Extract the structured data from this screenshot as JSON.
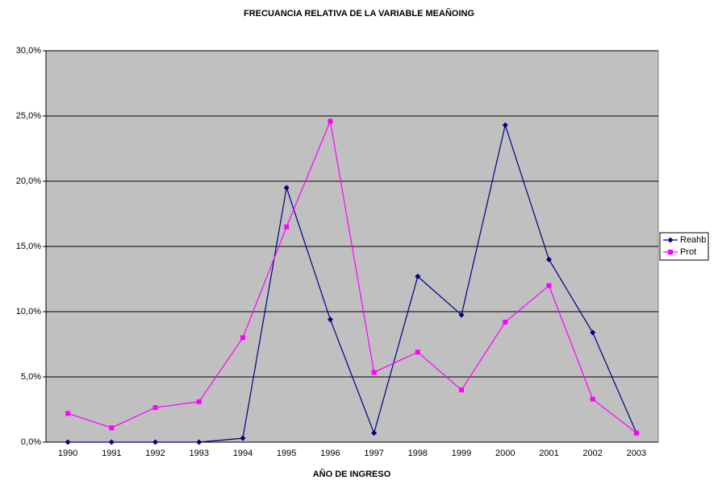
{
  "chart_data": {
    "type": "line",
    "title": "FRECUANCIA RELATIVA DE LA VARIABLE MEAÑOING",
    "x_label": "AÑO DE INGRESO",
    "categories": [
      "1990",
      "1991",
      "1992",
      "1993",
      "1994",
      "1995",
      "1996",
      "1997",
      "1998",
      "1999",
      "2000",
      "2001",
      "2002",
      "2003"
    ],
    "series": [
      {
        "name": "Reahb",
        "color": "#000080",
        "marker": "diamond",
        "values": [
          0,
          0,
          0,
          0,
          0.3,
          19.5,
          9.4,
          0.7,
          12.7,
          9.75,
          24.3,
          14.0,
          8.4,
          0.7
        ]
      },
      {
        "name": "Prot",
        "color": "#ff00ff",
        "marker": "square",
        "values": [
          2.2,
          1.1,
          2.65,
          3.1,
          8.0,
          16.5,
          24.6,
          5.35,
          6.9,
          4.0,
          9.2,
          12.0,
          3.3,
          0.7
        ]
      }
    ],
    "ylim": [
      0,
      30
    ],
    "yticks": [
      {
        "value": 0,
        "label": "0,0%"
      },
      {
        "value": 5,
        "label": "5,0%"
      },
      {
        "value": 10,
        "label": "10,0%"
      },
      {
        "value": 15,
        "label": "15,0%"
      },
      {
        "value": 20,
        "label": "20,0%"
      },
      {
        "value": 25,
        "label": "25,0%"
      },
      {
        "value": 30,
        "label": "30,0%"
      }
    ],
    "grid": true,
    "plot_background": "#c0c0c0",
    "legend": "right"
  }
}
